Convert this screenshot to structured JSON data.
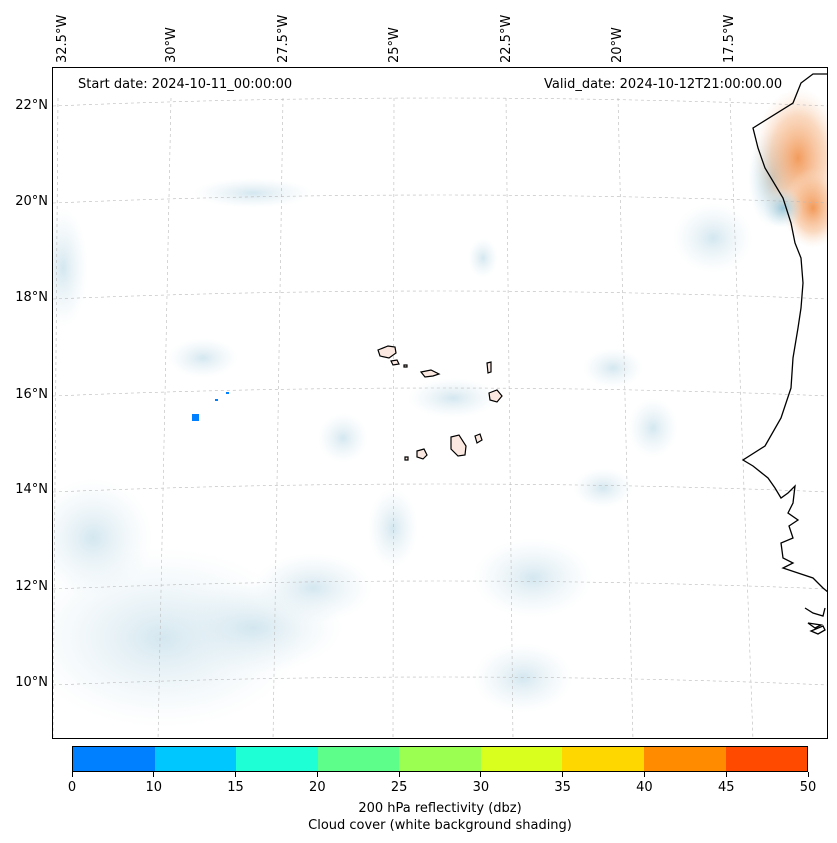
{
  "map": {
    "start_date": "Start date: 2024-10-11_00:00:00",
    "valid_date": "Valid_date: 2024-10-12T21:00:00.00",
    "lon_labels": [
      "32.5°W",
      "30°W",
      "27.5°W",
      "25°W",
      "22.5°W",
      "20°W",
      "17.5°W"
    ],
    "lat_labels": [
      "22°N",
      "20°N",
      "18°N",
      "16°N",
      "14°N",
      "12°N",
      "10°N"
    ],
    "extent": {
      "lon_min": -32.5,
      "lon_max": -15.5,
      "lat_min": 8.9,
      "lat_max": 22.8
    },
    "reflectivity_patches": [
      {
        "lon": -29.1,
        "lat": 15.5,
        "dbz": 5
      },
      {
        "lon": -28.5,
        "lat": 15.85,
        "dbz": 5
      },
      {
        "lon": -28.3,
        "lat": 16.05,
        "dbz": 5
      }
    ],
    "reflectivity_high_region": {
      "lon": -16.0,
      "lat": 20.5,
      "dbz_max": 40,
      "place": "Mauritanian coast"
    }
  },
  "colorbar": {
    "ticks": [
      "0",
      "10",
      "15",
      "20",
      "25",
      "30",
      "35",
      "40",
      "45",
      "50"
    ],
    "colors": [
      "#0080ff",
      "#00c8ff",
      "#1effd6",
      "#5dff8a",
      "#9bff52",
      "#d8ff1e",
      "#ffd700",
      "#ff8c00",
      "#ff4a00"
    ],
    "title_line1": "200 hPa reflectivity (dbz)",
    "title_line2": "Cloud cover (white background shading)"
  }
}
